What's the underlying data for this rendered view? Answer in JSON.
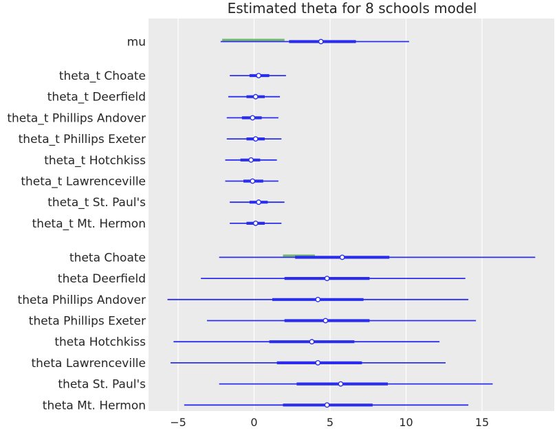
{
  "chart_data": {
    "type": "forest",
    "title": "Estimated theta for 8 schools model",
    "xlabel": "",
    "ylabel": "",
    "xlim": [
      -6.8,
      19.6
    ],
    "xticks": [
      -5,
      0,
      5,
      10,
      15
    ],
    "xtick_labels": [
      "−5",
      "0",
      "5",
      "10",
      "15"
    ],
    "grid": true,
    "colors": {
      "background": "#ebebeb",
      "grid": "#ffffff",
      "interval": "#2a2eec",
      "median_fill": "#ffffff",
      "annotation": "#6fb76b"
    },
    "groups": [
      {
        "rows": [
          {
            "label": "mu",
            "hdi_low": -2.2,
            "hdi_high": 10.2,
            "iqr_low": 2.3,
            "iqr_high": 6.7,
            "median": 4.4,
            "bar_low": -2.1,
            "bar_high": 2.0
          }
        ]
      },
      {
        "rows": [
          {
            "label": "theta_t Choate",
            "hdi_low": -1.6,
            "hdi_high": 2.1,
            "iqr_low": -0.3,
            "iqr_high": 1.0,
            "median": 0.3
          },
          {
            "label": "theta_t Deerfield",
            "hdi_low": -1.7,
            "hdi_high": 1.7,
            "iqr_low": -0.5,
            "iqr_high": 0.7,
            "median": 0.1
          },
          {
            "label": "theta_t Phillips Andover",
            "hdi_low": -1.8,
            "hdi_high": 1.6,
            "iqr_low": -0.8,
            "iqr_high": 0.5,
            "median": -0.1
          },
          {
            "label": "theta_t Phillips Exeter",
            "hdi_low": -1.8,
            "hdi_high": 1.8,
            "iqr_low": -0.5,
            "iqr_high": 0.7,
            "median": 0.1
          },
          {
            "label": "theta_t Hotchkiss",
            "hdi_low": -1.9,
            "hdi_high": 1.5,
            "iqr_low": -0.9,
            "iqr_high": 0.4,
            "median": -0.2
          },
          {
            "label": "theta_t Lawrenceville",
            "hdi_low": -1.9,
            "hdi_high": 1.6,
            "iqr_low": -0.7,
            "iqr_high": 0.6,
            "median": -0.1
          },
          {
            "label": "theta_t St. Paul's",
            "hdi_low": -1.6,
            "hdi_high": 2.0,
            "iqr_low": -0.3,
            "iqr_high": 0.9,
            "median": 0.3
          },
          {
            "label": "theta_t Mt. Hermon",
            "hdi_low": -1.6,
            "hdi_high": 1.8,
            "iqr_low": -0.5,
            "iqr_high": 0.7,
            "median": 0.1
          }
        ]
      },
      {
        "rows": [
          {
            "label": "theta Choate",
            "hdi_low": -2.3,
            "hdi_high": 18.5,
            "iqr_low": 2.7,
            "iqr_high": 8.9,
            "median": 5.8,
            "bar_low": 1.9,
            "bar_high": 4.0
          },
          {
            "label": "theta Deerfield",
            "hdi_low": -3.5,
            "hdi_high": 13.9,
            "iqr_low": 2.0,
            "iqr_high": 7.6,
            "median": 4.8
          },
          {
            "label": "theta Phillips Andover",
            "hdi_low": -5.7,
            "hdi_high": 14.1,
            "iqr_low": 1.2,
            "iqr_high": 7.2,
            "median": 4.2
          },
          {
            "label": "theta Phillips Exeter",
            "hdi_low": -3.1,
            "hdi_high": 14.6,
            "iqr_low": 2.0,
            "iqr_high": 7.6,
            "median": 4.7
          },
          {
            "label": "theta Hotchkiss",
            "hdi_low": -5.3,
            "hdi_high": 12.2,
            "iqr_low": 1.0,
            "iqr_high": 6.6,
            "median": 3.8
          },
          {
            "label": "theta Lawrenceville",
            "hdi_low": -5.5,
            "hdi_high": 12.6,
            "iqr_low": 1.5,
            "iqr_high": 7.1,
            "median": 4.2
          },
          {
            "label": "theta St. Paul's",
            "hdi_low": -2.3,
            "hdi_high": 15.7,
            "iqr_low": 2.8,
            "iqr_high": 8.8,
            "median": 5.7
          },
          {
            "label": "theta Mt. Hermon",
            "hdi_low": -4.6,
            "hdi_high": 14.1,
            "iqr_low": 1.9,
            "iqr_high": 7.8,
            "median": 4.8
          }
        ]
      }
    ]
  }
}
